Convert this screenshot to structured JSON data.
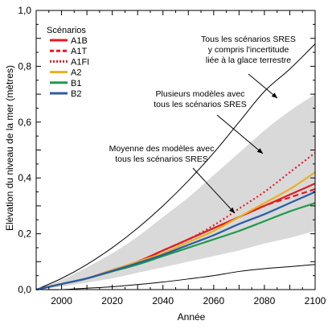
{
  "chart_data": {
    "type": "line",
    "xlabel": "Année",
    "ylabel": "Elévation du niveau de la mer (mètres)",
    "xlim": [
      1990,
      2100
    ],
    "ylim": [
      0,
      1.0
    ],
    "x_ticks": [
      "2000",
      "2020",
      "2040",
      "2060",
      "2080",
      "2100"
    ],
    "y_ticks": [
      "0,0",
      "0,2",
      "0,4",
      "0,6",
      "0,8",
      "1,0"
    ],
    "legend": {
      "title": "Scénarios",
      "position": "top-left",
      "entries": [
        "A1B",
        "A1T",
        "A1FI",
        "A2",
        "B1",
        "B2"
      ]
    },
    "annotations": {
      "envelope_all": [
        "Tous les scénarios SRES",
        "y compris l'incertitude",
        "liée à la glace terrestre"
      ],
      "envelope_models": [
        "Plusieurs modèles avec",
        "tous les scénarios SRES"
      ],
      "mean": [
        "Moyenne des modèles avec",
        "tous les scénarios SRES"
      ]
    },
    "envelopes": [
      {
        "description": "outer range",
        "x": [
          1990,
          2000,
          2010,
          2020,
          2030,
          2040,
          2050,
          2060,
          2070,
          2080,
          2090,
          2100
        ],
        "upper": [
          0.0,
          0.04,
          0.09,
          0.15,
          0.22,
          0.3,
          0.39,
          0.49,
          0.6,
          0.71,
          0.79,
          0.88
        ],
        "lower": [
          0.0,
          0.0,
          0.005,
          0.01,
          0.018,
          0.027,
          0.038,
          0.05,
          0.065,
          0.075,
          0.082,
          0.09
        ]
      },
      {
        "description": "model range",
        "x": [
          1990,
          2000,
          2010,
          2020,
          2030,
          2040,
          2050,
          2060,
          2070,
          2080,
          2090,
          2100
        ],
        "upper": [
          0.0,
          0.035,
          0.08,
          0.13,
          0.19,
          0.26,
          0.33,
          0.41,
          0.49,
          0.57,
          0.64,
          0.7
        ],
        "lower": [
          0.0,
          0.01,
          0.025,
          0.04,
          0.06,
          0.08,
          0.1,
          0.12,
          0.14,
          0.165,
          0.185,
          0.21
        ]
      }
    ],
    "series": [
      {
        "name": "A1B",
        "color": "#e31b23",
        "dash": "solid",
        "x": [
          1990,
          2000,
          2010,
          2020,
          2030,
          2040,
          2050,
          2060,
          2070,
          2080,
          2090,
          2100
        ],
        "y": [
          0.0,
          0.02,
          0.04,
          0.07,
          0.1,
          0.14,
          0.18,
          0.22,
          0.26,
          0.3,
          0.34,
          0.38
        ]
      },
      {
        "name": "A1T",
        "color": "#e31b23",
        "dash": "dashed",
        "x": [
          1990,
          2000,
          2010,
          2020,
          2030,
          2040,
          2050,
          2060,
          2070,
          2080,
          2090,
          2100
        ],
        "y": [
          0.0,
          0.02,
          0.04,
          0.07,
          0.1,
          0.14,
          0.18,
          0.22,
          0.26,
          0.3,
          0.33,
          0.36
        ]
      },
      {
        "name": "A1FI",
        "color": "#e31b23",
        "dash": "dotted",
        "x": [
          1990,
          2000,
          2010,
          2020,
          2030,
          2040,
          2050,
          2060,
          2070,
          2080,
          2090,
          2100
        ],
        "y": [
          0.0,
          0.02,
          0.04,
          0.07,
          0.1,
          0.14,
          0.18,
          0.23,
          0.29,
          0.35,
          0.42,
          0.49
        ]
      },
      {
        "name": "A2",
        "color": "#e8b01e",
        "dash": "solid",
        "x": [
          1990,
          2000,
          2010,
          2020,
          2030,
          2040,
          2050,
          2060,
          2070,
          2080,
          2090,
          2100
        ],
        "y": [
          0.0,
          0.02,
          0.04,
          0.07,
          0.1,
          0.13,
          0.17,
          0.21,
          0.26,
          0.31,
          0.36,
          0.42
        ]
      },
      {
        "name": "B1",
        "color": "#1f9a48",
        "dash": "solid",
        "x": [
          1990,
          2000,
          2010,
          2020,
          2030,
          2040,
          2050,
          2060,
          2070,
          2080,
          2090,
          2100
        ],
        "y": [
          0.0,
          0.02,
          0.04,
          0.065,
          0.09,
          0.12,
          0.15,
          0.18,
          0.21,
          0.245,
          0.28,
          0.31
        ]
      },
      {
        "name": "B2",
        "color": "#2a5ba8",
        "dash": "solid",
        "x": [
          1990,
          2000,
          2010,
          2020,
          2030,
          2040,
          2050,
          2060,
          2070,
          2080,
          2090,
          2100
        ],
        "y": [
          0.0,
          0.02,
          0.04,
          0.067,
          0.095,
          0.125,
          0.16,
          0.195,
          0.235,
          0.27,
          0.31,
          0.35
        ]
      }
    ]
  }
}
